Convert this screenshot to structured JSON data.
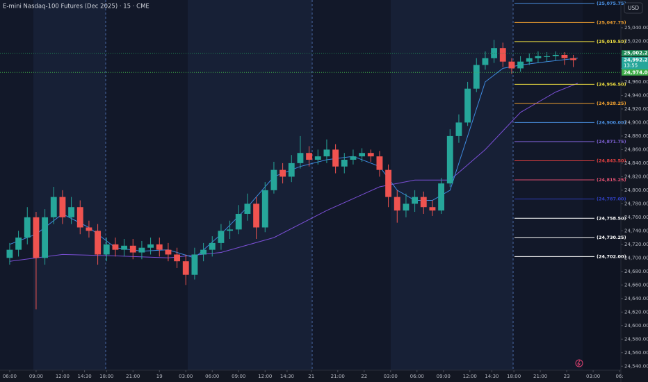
{
  "chart_data": {
    "type": "candlestick",
    "title": "E-mini Nasdaq-100 Futures (Dec 2025) · 15 · CME",
    "currency": "USD",
    "up_color": "#26a69a",
    "down_color": "#ef5350",
    "x": [
      0,
      4,
      8,
      12,
      16,
      20,
      24,
      28,
      32,
      36,
      40,
      44,
      48,
      52,
      56,
      60,
      64,
      68,
      72,
      76,
      80,
      84,
      88,
      92,
      96,
      100,
      104,
      108,
      112,
      116,
      120,
      124,
      128,
      132,
      136,
      140,
      144,
      148,
      152,
      156,
      160,
      164,
      168,
      172,
      176,
      180,
      184,
      188,
      192,
      196,
      200,
      204,
      208,
      212,
      216,
      220,
      224,
      228,
      232,
      236,
      240,
      244,
      248,
      252,
      256
    ],
    "open": [
      24700,
      24712,
      24730,
      24760,
      24700,
      24760,
      24790,
      24760,
      24775,
      24745,
      24740,
      24705,
      24720,
      24712,
      24718,
      24708,
      24715,
      24720,
      24712,
      24705,
      24695,
      24675,
      24705,
      24712,
      24722,
      24740,
      24742,
      24765,
      24780,
      24745,
      24800,
      24830,
      24820,
      24840,
      24855,
      24845,
      24850,
      24860,
      24835,
      24845,
      24850,
      24855,
      24850,
      24830,
      24790,
      24770,
      24780,
      24790,
      24775,
      24770,
      24810,
      24880,
      24900,
      24950,
      24985,
      24995,
      25010,
      24990,
      24980,
      24990,
      24995,
      24998,
      24998,
      25000,
      24995
    ],
    "high": [
      24722,
      24740,
      24775,
      24768,
      24772,
      24805,
      24800,
      24790,
      24785,
      24755,
      24750,
      24730,
      24730,
      24728,
      24728,
      24725,
      24730,
      24730,
      24722,
      24715,
      24705,
      24715,
      24722,
      24732,
      24750,
      24755,
      24778,
      24795,
      24790,
      24812,
      24842,
      24840,
      24852,
      24880,
      24865,
      24860,
      24875,
      24868,
      24855,
      24860,
      24862,
      24860,
      24858,
      24838,
      24800,
      24795,
      24800,
      24798,
      24785,
      24818,
      24890,
      24912,
      24960,
      24995,
      25005,
      25022,
      25018,
      24995,
      24998,
      25002,
      25005,
      25004,
      25005,
      25004,
      25000
    ],
    "low": [
      24690,
      24702,
      24720,
      24624,
      24690,
      24750,
      24750,
      24750,
      24735,
      24730,
      24690,
      24695,
      24702,
      24702,
      24698,
      24698,
      24705,
      24702,
      24695,
      24685,
      24660,
      24668,
      24695,
      24702,
      24712,
      24728,
      24735,
      24755,
      24728,
      24738,
      24795,
      24810,
      24812,
      24832,
      24835,
      24838,
      24840,
      24825,
      24825,
      24838,
      24842,
      24842,
      24820,
      24775,
      24752,
      24760,
      24768,
      24765,
      24762,
      24765,
      24805,
      24870,
      24895,
      24945,
      24978,
      24988,
      24982,
      24972,
      24975,
      24985,
      24988,
      24990,
      24992,
      24985,
      24982
    ],
    "close": [
      24712,
      24730,
      24760,
      24700,
      24760,
      24790,
      24760,
      24775,
      24745,
      24740,
      24705,
      24720,
      24712,
      24718,
      24708,
      24715,
      24720,
      24712,
      24705,
      24695,
      24675,
      24705,
      24712,
      24722,
      24740,
      24742,
      24765,
      24780,
      24745,
      24800,
      24830,
      24820,
      24840,
      24855,
      24845,
      24850,
      24860,
      24835,
      24845,
      24850,
      24855,
      24850,
      24830,
      24790,
      24770,
      24780,
      24790,
      24775,
      24770,
      24810,
      24880,
      24900,
      24950,
      24985,
      24995,
      25010,
      24990,
      24980,
      24990,
      24995,
      24998,
      24998,
      25000,
      24995,
      24992.25
    ],
    "xlim": [
      -4.4,
      277.6
    ],
    "xticks": [
      {
        "value": 0,
        "label": "06:00"
      },
      {
        "value": 12,
        "label": "09:00"
      },
      {
        "value": 24,
        "label": "12:00"
      },
      {
        "value": 34,
        "label": "14:30"
      },
      {
        "value": 44,
        "label": "18:00"
      },
      {
        "value": 56,
        "label": "21:00"
      },
      {
        "value": 68,
        "label": "19"
      },
      {
        "value": 80,
        "label": "03:00"
      },
      {
        "value": 92,
        "label": "06:00"
      },
      {
        "value": 104,
        "label": "09:00"
      },
      {
        "value": 116,
        "label": "12:00"
      },
      {
        "value": 126,
        "label": "14:30"
      },
      {
        "value": 137,
        "label": "21"
      },
      {
        "value": 149,
        "label": "21:00"
      },
      {
        "value": 161,
        "label": "22"
      },
      {
        "value": 173,
        "label": "03:00"
      },
      {
        "value": 185,
        "label": "06:00"
      },
      {
        "value": 197,
        "label": "09:00"
      },
      {
        "value": 209,
        "label": "12:00"
      },
      {
        "value": 219,
        "label": "14:30"
      },
      {
        "value": 229,
        "label": "18:00"
      },
      {
        "value": 241,
        "label": "21:00"
      },
      {
        "value": 253,
        "label": "23"
      },
      {
        "value": 265,
        "label": "03:00"
      },
      {
        "value": 277,
        "label": "06:"
      }
    ],
    "ylim": [
      24530,
      25081
    ],
    "yticks": [
      {
        "value": 25040,
        "label": "25,040.00"
      },
      {
        "value": 25020,
        "label": "25,020.00"
      },
      {
        "value": 25000,
        "label": "25,000.00"
      },
      {
        "value": 24980,
        "label": "24,980.00"
      },
      {
        "value": 24960,
        "label": "24,960.00"
      },
      {
        "value": 24940,
        "label": "24,940.00"
      },
      {
        "value": 24920,
        "label": "24,920.00"
      },
      {
        "value": 24900,
        "label": "24,900.00"
      },
      {
        "value": 24880,
        "label": "24,880.00"
      },
      {
        "value": 24860,
        "label": "24,860.00"
      },
      {
        "value": 24840,
        "label": "24,840.00"
      },
      {
        "value": 24820,
        "label": "24,820.00"
      },
      {
        "value": 24800,
        "label": "24,800.00"
      },
      {
        "value": 24780,
        "label": "24,780.00"
      },
      {
        "value": 24760,
        "label": "24,760.00"
      },
      {
        "value": 24740,
        "label": "24,740.00"
      },
      {
        "value": 24720,
        "label": "24,720.00"
      },
      {
        "value": 24700,
        "label": "24,700.00"
      },
      {
        "value": 24680,
        "label": "24,680.00"
      },
      {
        "value": 24660,
        "label": "24,660.00"
      },
      {
        "value": 24640,
        "label": "24,640.00"
      },
      {
        "value": 24620,
        "label": "24,620.00"
      },
      {
        "value": 24600,
        "label": "24,600.00"
      },
      {
        "value": 24580,
        "label": "24,580.00"
      },
      {
        "value": 24560,
        "label": "24,560.00"
      },
      {
        "value": 24540,
        "label": "24,540.00"
      }
    ],
    "overlays": [
      {
        "color": "#7b4fd6",
        "x": [
          0,
          24,
          48,
          72,
          96,
          120,
          144,
          168,
          184,
          200,
          216,
          232,
          248,
          258
        ],
        "values": [
          24695,
          24705,
          24703,
          24700,
          24708,
          24730,
          24770,
          24805,
          24815,
          24815,
          24860,
          24915,
          24945,
          24958
        ]
      },
      {
        "color": "#3f8be0",
        "x": [
          0,
          12,
          24,
          36,
          48,
          60,
          72,
          84,
          96,
          108,
          120,
          132,
          144,
          156,
          168,
          176,
          184,
          192,
          200,
          208,
          216,
          224,
          232,
          244,
          258
        ],
        "values": [
          24720,
          24735,
          24765,
          24745,
          24715,
          24710,
          24712,
          24700,
          24735,
          24775,
          24820,
          24835,
          24845,
          24850,
          24835,
          24800,
          24785,
          24785,
          24800,
          24880,
          24960,
          24980,
          24985,
          24990,
          24995
        ]
      }
    ],
    "levels": [
      {
        "value": 25075.75,
        "label": "(25,075.75)",
        "color": "#4a8fe0"
      },
      {
        "value": 25047.75,
        "label": "(25,047.75)",
        "color": "#f0a030"
      },
      {
        "value": 25019.5,
        "label": "(25,019.50)",
        "color": "#f0e040"
      },
      {
        "value": 24956.5,
        "label": "(24,956.50)",
        "color": "#f0e040"
      },
      {
        "value": 24928.25,
        "label": "(24,928.25)",
        "color": "#f0a030"
      },
      {
        "value": 24900,
        "label": "(24,900.00)",
        "color": "#4a8fe0"
      },
      {
        "value": 24871.75,
        "label": "(24,871.75)",
        "color": "#7b5fd0"
      },
      {
        "value": 24843.5,
        "label": "(24,843.50)",
        "color": "#e04040"
      },
      {
        "value": 24815.25,
        "label": "(24,815.25)",
        "color": "#e05070"
      },
      {
        "value": 24787,
        "label": "(24,787.00)",
        "color": "#3040c0"
      },
      {
        "value": 24758.5,
        "label": "(24,758.50)",
        "color": "#ffffff"
      },
      {
        "value": 24730.25,
        "label": "(24,730.25)",
        "color": "#ffffff"
      },
      {
        "value": 24702,
        "label": "(24,702.00)",
        "color": "#ffffff"
      }
    ],
    "price_markers": [
      {
        "value": 25002.25,
        "label": "25,002.25",
        "color": "#1f8a56",
        "dotted": true
      },
      {
        "value": 24992.25,
        "label": "24,992.25",
        "countdown": "13:55",
        "color": "#26a69a",
        "dotted": false
      },
      {
        "value": 24974,
        "label": "24,974.00",
        "color": "#3fae48",
        "dotted": true
      }
    ]
  }
}
